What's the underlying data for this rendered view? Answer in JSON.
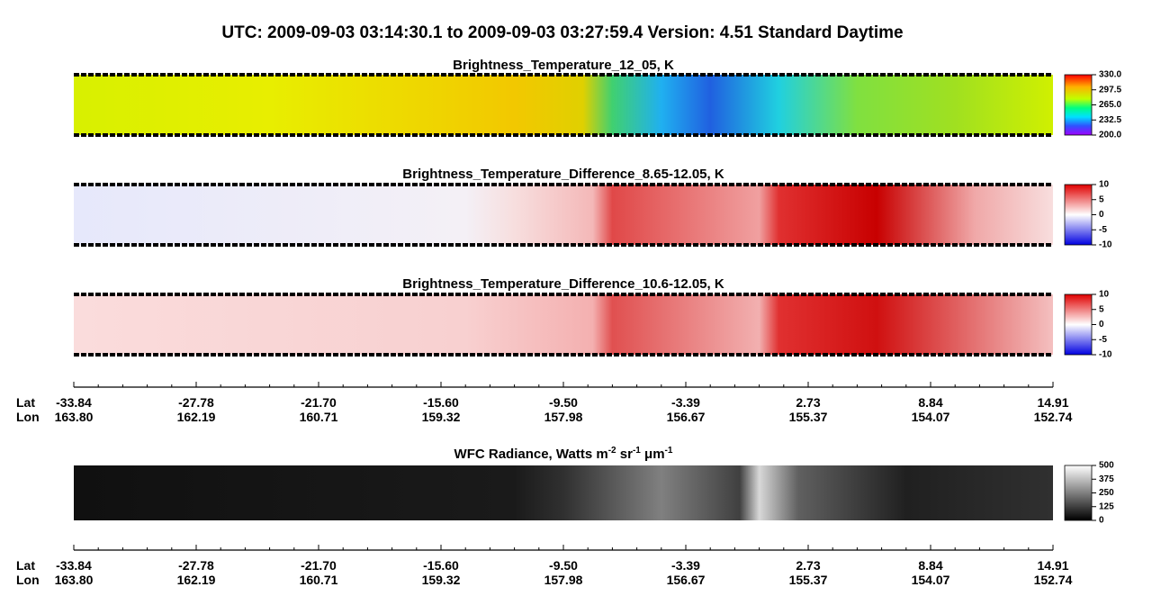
{
  "header": {
    "title": "UTC:  2009-09-03   03:14:30.1  to  2009-09-03   03:27:59.4    Version: 4.51  Standard Daytime"
  },
  "panels": [
    {
      "title": "Brightness_Temperature_12_05, K",
      "colorbar": [
        "330.0",
        "297.5",
        "265.0",
        "232.5",
        "200.0"
      ]
    },
    {
      "title": "Brightness_Temperature_Difference_8.65-12.05, K",
      "colorbar": [
        "10",
        "5",
        "0",
        "-5",
        "-10"
      ]
    },
    {
      "title": "Brightness_Temperature_Difference_10.6-12.05, K",
      "colorbar": [
        "10",
        "5",
        "0",
        "-5",
        "-10"
      ]
    },
    {
      "title_parts": [
        "WFC Radiance, Watts m",
        "-2",
        " sr",
        "-1",
        " μm",
        "-1"
      ],
      "colorbar": [
        "500",
        "375",
        "250",
        "125",
        "0"
      ]
    }
  ],
  "axes": [
    {
      "lat_label": "Lat",
      "lon_label": "Lon",
      "lat": [
        "-33.84",
        "-27.78",
        "-21.70",
        "-15.60",
        "-9.50",
        "-3.39",
        "2.73",
        "8.84",
        "14.91"
      ],
      "lon": [
        "163.80",
        "162.19",
        "160.71",
        "159.32",
        "157.98",
        "156.67",
        "155.37",
        "154.07",
        "152.74"
      ]
    },
    {
      "lat_label": "Lat",
      "lon_label": "Lon",
      "lat": [
        "-33.84",
        "-27.78",
        "-21.70",
        "-15.60",
        "-9.50",
        "-3.39",
        "2.73",
        "8.84",
        "14.91"
      ],
      "lon": [
        "163.80",
        "162.19",
        "160.71",
        "159.32",
        "157.98",
        "156.67",
        "155.37",
        "154.07",
        "152.74"
      ]
    }
  ]
}
